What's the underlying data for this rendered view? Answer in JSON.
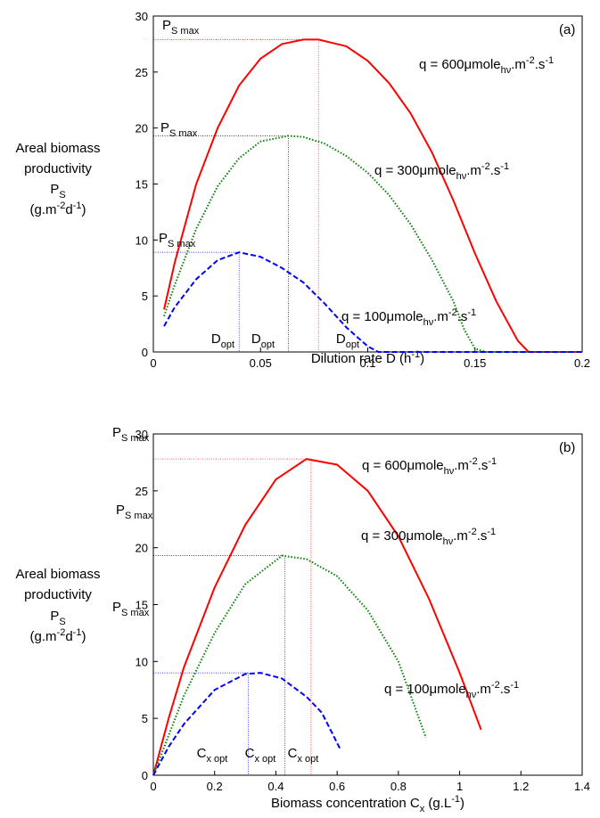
{
  "chart_data": [
    {
      "type": "line",
      "panel": "(a)",
      "xlim": [
        0,
        0.2
      ],
      "xticks": [
        0,
        0.05,
        0.1,
        0.15,
        0.2
      ],
      "ylim": [
        0,
        30
      ],
      "yticks": [
        0,
        5,
        10,
        15,
        20,
        25,
        30
      ],
      "xlabel": [
        {
          "text": "Dilution rate D (h"
        },
        {
          "text": "-1",
          "shift": "sup"
        },
        {
          "text": ")"
        }
      ],
      "ylabel": [
        [
          {
            "text": "Areal biomass"
          }
        ],
        [
          {
            "text": "productivity"
          }
        ],
        [
          {
            "text": "P"
          },
          {
            "text": "S",
            "shift": "sub"
          }
        ],
        [
          {
            "text": "(g.m"
          },
          {
            "text": "-2",
            "shift": "sup"
          },
          {
            "text": "d"
          },
          {
            "text": "-1",
            "shift": "sup"
          },
          {
            "text": ")"
          }
        ]
      ],
      "series": [
        {
          "color": "#ff0000",
          "label_color": "#ff0000",
          "style": "solid",
          "label": [
            {
              "text": "q = 600μmole"
            },
            {
              "text": "hν",
              "shift": "sub"
            },
            {
              "text": ".m"
            },
            {
              "text": "-2",
              "shift": "sup"
            },
            {
              "text": ".s"
            },
            {
              "text": "-1",
              "shift": "sup"
            }
          ],
          "ymax_label": [
            {
              "text": "P"
            },
            {
              "text": "S max",
              "shift": "sub"
            }
          ],
          "xopt_label": [
            {
              "text": "D"
            },
            {
              "text": "opt",
              "shift": "sub"
            }
          ],
          "peak": {
            "x": 0.077,
            "y": 27.9
          },
          "x": [
            0.005,
            0.01,
            0.02,
            0.03,
            0.04,
            0.05,
            0.06,
            0.07,
            0.077,
            0.09,
            0.1,
            0.11,
            0.12,
            0.13,
            0.14,
            0.15,
            0.16,
            0.17,
            0.175,
            0.2
          ],
          "values": [
            3.8,
            8,
            15,
            20,
            23.8,
            26.2,
            27.5,
            27.9,
            27.9,
            27.3,
            26,
            24,
            21.3,
            17.8,
            13.5,
            8.8,
            4.5,
            1,
            0,
            0
          ]
        },
        {
          "color": "#008000",
          "label_color": "#000000",
          "style": "dotted",
          "label": [
            {
              "text": "q = 300μmole"
            },
            {
              "text": "hν",
              "shift": "sub"
            },
            {
              "text": ".m"
            },
            {
              "text": "-2",
              "shift": "sup"
            },
            {
              "text": ".s"
            },
            {
              "text": "-1",
              "shift": "sup"
            }
          ],
          "ymax_label": [
            {
              "text": "P"
            },
            {
              "text": "S max",
              "shift": "sub"
            }
          ],
          "xopt_label": [
            {
              "text": "D"
            },
            {
              "text": "opt",
              "shift": "sub"
            }
          ],
          "peak": {
            "x": 0.063,
            "y": 19.3
          },
          "x": [
            0.005,
            0.01,
            0.02,
            0.03,
            0.04,
            0.05,
            0.063,
            0.07,
            0.08,
            0.09,
            0.1,
            0.11,
            0.12,
            0.13,
            0.14,
            0.145,
            0.15,
            0.155,
            0.2
          ],
          "values": [
            3.2,
            6,
            11,
            14.8,
            17.3,
            18.8,
            19.3,
            19.2,
            18.6,
            17.5,
            16,
            14,
            11.4,
            8.2,
            4.5,
            2,
            0.3,
            0,
            0
          ]
        },
        {
          "color": "#0000ff",
          "label_color": "#0000ff",
          "style": "dashed",
          "label": [
            {
              "text": "q = 100μmole"
            },
            {
              "text": "hν",
              "shift": "sub"
            },
            {
              "text": ".m"
            },
            {
              "text": "-2",
              "shift": "sup"
            },
            {
              "text": ".s"
            },
            {
              "text": "-1",
              "shift": "sup"
            }
          ],
          "ymax_label": [
            {
              "text": "P"
            },
            {
              "text": "S max",
              "shift": "sub"
            }
          ],
          "xopt_label": [
            {
              "text": "D"
            },
            {
              "text": "opt",
              "shift": "sub"
            }
          ],
          "peak": {
            "x": 0.04,
            "y": 8.9
          },
          "x": [
            0.005,
            0.01,
            0.02,
            0.03,
            0.04,
            0.05,
            0.06,
            0.07,
            0.08,
            0.09,
            0.1,
            0.105,
            0.2
          ],
          "values": [
            2.3,
            4,
            6.5,
            8.2,
            8.9,
            8.5,
            7.5,
            6.2,
            4.3,
            2.2,
            0.5,
            0,
            0
          ]
        }
      ]
    },
    {
      "type": "line",
      "panel": "(b)",
      "xlim": [
        0,
        1.4
      ],
      "xticks": [
        0,
        0.2,
        0.4,
        0.6,
        0.8,
        1,
        1.2,
        1.4
      ],
      "ylim": [
        0,
        30
      ],
      "yticks": [
        0,
        5,
        10,
        15,
        20,
        25,
        30
      ],
      "xlabel": [
        {
          "text": "Biomass concentration C"
        },
        {
          "text": "x",
          "shift": "sub"
        },
        {
          "text": " (g.L"
        },
        {
          "text": "-1",
          "shift": "sup"
        },
        {
          "text": ")"
        }
      ],
      "ylabel": [
        [
          {
            "text": "Areal biomass"
          }
        ],
        [
          {
            "text": "productivity"
          }
        ],
        [
          {
            "text": "P"
          },
          {
            "text": "S",
            "shift": "sub"
          }
        ],
        [
          {
            "text": "(g.m"
          },
          {
            "text": "-2",
            "shift": "sup"
          },
          {
            "text": "d"
          },
          {
            "text": "-1",
            "shift": "sup"
          },
          {
            "text": ")"
          }
        ]
      ],
      "series": [
        {
          "color": "#ff0000",
          "label_color": "#ff0000",
          "style": "solid",
          "label": [
            {
              "text": "q = 600μmole"
            },
            {
              "text": "hν",
              "shift": "sub"
            },
            {
              "text": ".m"
            },
            {
              "text": "-2",
              "shift": "sup"
            },
            {
              "text": ".s"
            },
            {
              "text": "-1",
              "shift": "sup"
            }
          ],
          "ymax_label": [
            {
              "text": "P"
            },
            {
              "text": "S max",
              "shift": "sub"
            }
          ],
          "xopt_label": [
            {
              "text": "C"
            },
            {
              "text": "x opt",
              "shift": "sub"
            }
          ],
          "peak": {
            "x": 0.515,
            "y": 27.8
          },
          "x": [
            0,
            0.05,
            0.1,
            0.2,
            0.3,
            0.4,
            0.5,
            0.6,
            0.7,
            0.8,
            0.9,
            1,
            1.07
          ],
          "values": [
            0,
            5,
            9.5,
            16.5,
            22,
            26,
            27.8,
            27.3,
            25,
            21,
            15.5,
            9,
            4
          ]
        },
        {
          "color": "#008000",
          "label_color": "#000000",
          "style": "dotted",
          "label": [
            {
              "text": "q = 300μmole"
            },
            {
              "text": "hν",
              "shift": "sub"
            },
            {
              "text": ".m"
            },
            {
              "text": "-2",
              "shift": "sup"
            },
            {
              "text": ".s"
            },
            {
              "text": "-1",
              "shift": "sup"
            }
          ],
          "ymax_label": [
            {
              "text": "P"
            },
            {
              "text": "S max",
              "shift": "sub"
            }
          ],
          "xopt_label": [
            {
              "text": "C"
            },
            {
              "text": "x opt",
              "shift": "sub"
            }
          ],
          "peak": {
            "x": 0.43,
            "y": 19.3
          },
          "x": [
            0,
            0.05,
            0.1,
            0.2,
            0.3,
            0.42,
            0.5,
            0.6,
            0.7,
            0.8,
            0.89
          ],
          "values": [
            0,
            3.5,
            7,
            12.5,
            16.8,
            19.3,
            19,
            17.5,
            14.5,
            10,
            3.3
          ]
        },
        {
          "color": "#0000ff",
          "label_color": "#0000ff",
          "style": "dashed",
          "label": [
            {
              "text": "q = 100μmole"
            },
            {
              "text": "hν",
              "shift": "sub"
            },
            {
              "text": ".m"
            },
            {
              "text": "-2",
              "shift": "sup"
            },
            {
              "text": ".s"
            },
            {
              "text": "-1",
              "shift": "sup"
            }
          ],
          "ymax_label": [
            {
              "text": "P"
            },
            {
              "text": "S max",
              "shift": "sub"
            }
          ],
          "xopt_label": [
            {
              "text": "C"
            },
            {
              "text": "x opt",
              "shift": "sub"
            }
          ],
          "peak": {
            "x": 0.31,
            "y": 9
          },
          "x": [
            0,
            0.05,
            0.1,
            0.2,
            0.3,
            0.35,
            0.42,
            0.5,
            0.55,
            0.61
          ],
          "values": [
            0,
            2.5,
            4.5,
            7.5,
            8.9,
            9,
            8.5,
            6.9,
            5.5,
            2.3
          ]
        }
      ]
    }
  ]
}
